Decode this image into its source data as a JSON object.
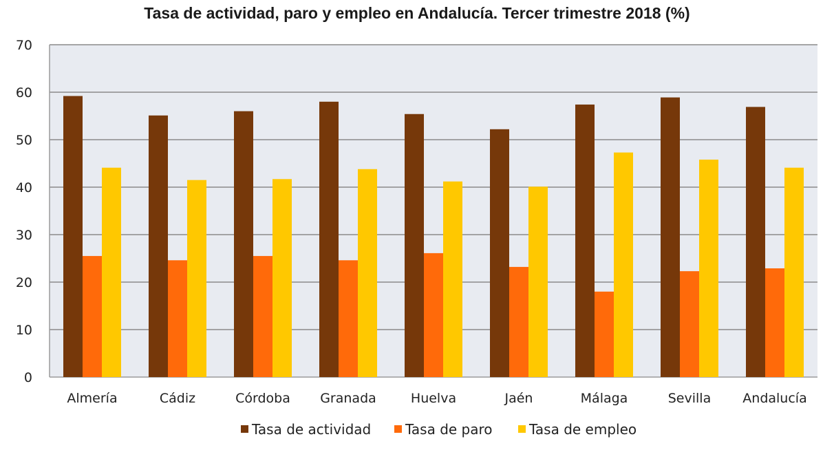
{
  "chart_data": {
    "type": "bar",
    "title": "Tasa de actividad, paro y empleo en Andalucía. Tercer trimestre 2018 (%)",
    "xlabel": "",
    "ylabel": "",
    "ylim": [
      0,
      70
    ],
    "yticks": [
      0,
      10,
      20,
      30,
      40,
      50,
      60,
      70
    ],
    "grid": true,
    "legend_position": "bottom",
    "categories": [
      "Almería",
      "Cádiz",
      "Córdoba",
      "Granada",
      "Huelva",
      "Jaén",
      "Málaga",
      "Sevilla",
      "Andalucía"
    ],
    "series": [
      {
        "name": "Tasa de actividad",
        "color": "#76380a",
        "values": [
          59.2,
          55.1,
          56.0,
          58.0,
          55.4,
          52.2,
          57.4,
          58.9,
          56.9
        ]
      },
      {
        "name": "Tasa de paro",
        "color": "#ff6a0a",
        "values": [
          25.5,
          24.6,
          25.5,
          24.6,
          26.1,
          23.2,
          18.0,
          22.3,
          22.9
        ]
      },
      {
        "name": "Tasa de empleo",
        "color": "#ffc800",
        "values": [
          44.1,
          41.5,
          41.7,
          43.8,
          41.2,
          40.1,
          47.3,
          45.8,
          44.1
        ]
      }
    ],
    "plot_background": "#e8ebf1",
    "gridline_color": "#8a8a8a"
  }
}
